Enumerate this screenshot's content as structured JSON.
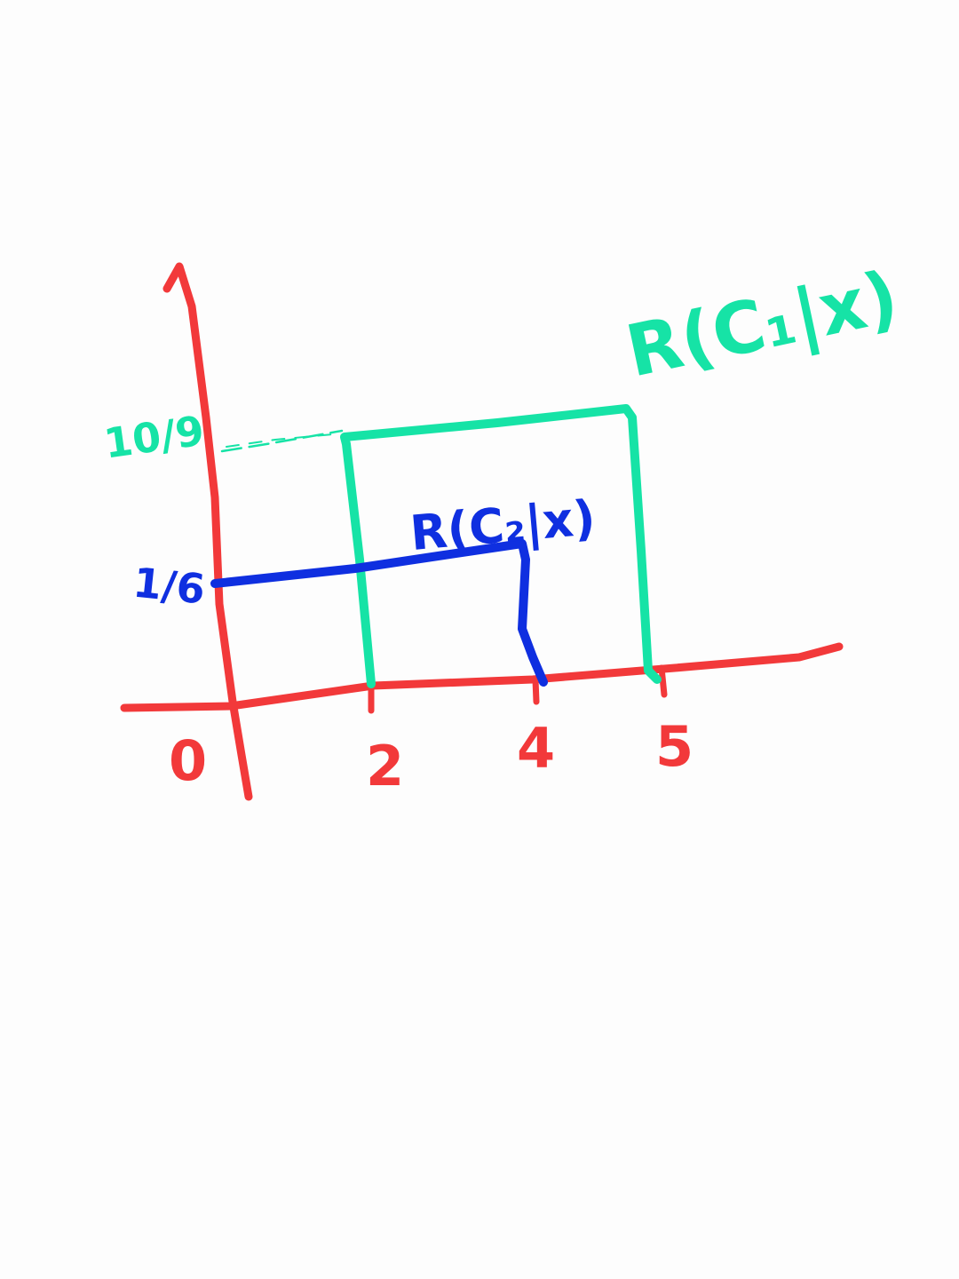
{
  "colors": {
    "axes": "#f2393a",
    "c1": "#16e3a6",
    "c2": "#0f2fe0",
    "background": "#fdfdfd"
  },
  "diagram": {
    "curve_c1": {
      "label": "R(C₁|x)",
      "x_from": 2,
      "x_to": 5,
      "level": "10/9",
      "level_label": "10/9"
    },
    "curve_c2": {
      "label": "R(C₂|x)",
      "x_from": 0,
      "x_to": 4,
      "level": "1/6",
      "level_label": "1/6"
    },
    "x_ticks": [
      "0",
      "2",
      "4",
      "5"
    ]
  }
}
